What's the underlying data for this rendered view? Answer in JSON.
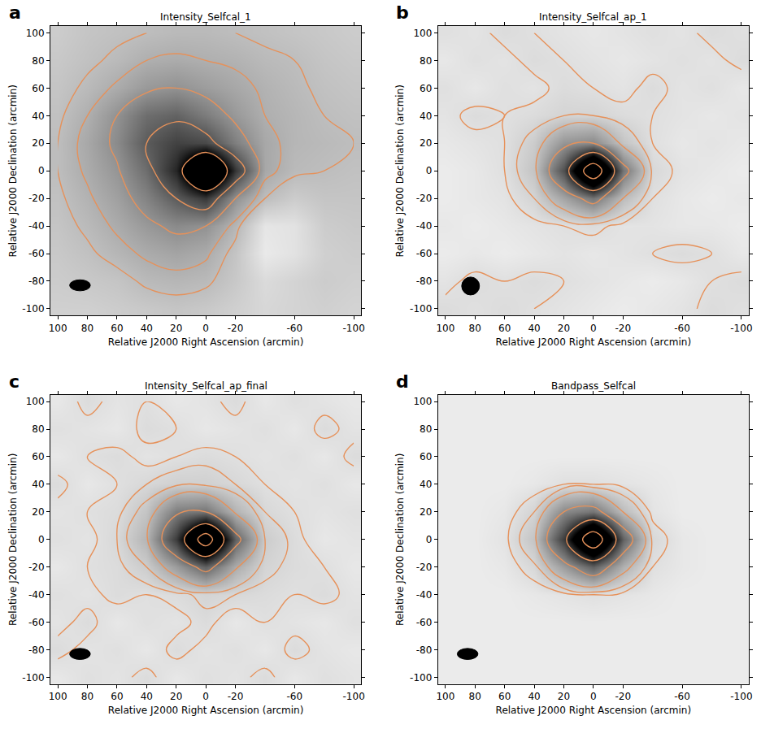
{
  "chart_data": [
    {
      "type": "contour",
      "panel": "a",
      "title": "Intensity_Selfcal_1",
      "x_label": "Relative J2000 Right Ascension (arcmin)",
      "y_label": "Relative J2000 Declination (arcmin)",
      "xlim": [
        105,
        -105
      ],
      "ylim": [
        -105,
        105
      ],
      "xticks": [
        100,
        80,
        60,
        40,
        20,
        0,
        -20,
        -60,
        -100
      ],
      "yticks": [
        -100,
        -80,
        -60,
        -40,
        -20,
        0,
        20,
        40,
        60,
        80,
        100
      ],
      "x": [
        -100,
        -80,
        -60,
        -40,
        -20,
        0,
        20,
        40,
        60,
        80,
        100
      ],
      "y": [
        -100,
        -80,
        -60,
        -40,
        -20,
        0,
        20,
        40,
        60,
        80,
        100
      ],
      "z": [
        [
          2,
          3,
          2,
          1,
          3,
          5,
          6,
          5,
          4,
          3,
          3
        ],
        [
          3,
          4,
          2,
          0,
          5,
          9,
          10,
          9,
          6,
          5,
          4
        ],
        [
          4,
          3,
          -2,
          -4,
          6,
          13,
          15,
          13,
          10,
          7,
          5
        ],
        [
          5,
          4,
          -2,
          -3,
          10,
          20,
          22,
          18,
          13,
          9,
          6
        ],
        [
          6,
          6,
          4,
          8,
          20,
          45,
          35,
          24,
          16,
          11,
          7
        ],
        [
          7,
          8,
          9,
          14,
          45,
          100,
          50,
          30,
          19,
          13,
          8
        ],
        [
          8,
          9,
          10,
          14,
          25,
          40,
          42,
          35,
          22,
          14,
          8
        ],
        [
          7,
          8,
          10,
          12,
          18,
          26,
          33,
          30,
          20,
          12,
          7
        ],
        [
          6,
          7,
          9,
          11,
          14,
          17,
          20,
          18,
          13,
          9,
          6
        ],
        [
          5,
          6,
          8,
          9,
          11,
          12,
          13,
          12,
          9,
          7,
          5
        ],
        [
          4,
          5,
          6,
          7,
          8,
          9,
          9,
          8,
          7,
          6,
          4
        ]
      ],
      "zlim": [
        -10,
        60
      ],
      "contour_levels": [
        8,
        12,
        20,
        35,
        60
      ],
      "color": "#e8141c",
      "beam": {
        "x": [
          78,
          92
        ],
        "y": [
          -87,
          -79
        ]
      }
    },
    {
      "type": "contour",
      "panel": "b",
      "title": "Intensity_Selfcal_ap_1",
      "x_label": "Relative J2000 Right Ascension (arcmin)",
      "y_label": "Relative J2000 Declination (arcmin)",
      "xlim": [
        105,
        -105
      ],
      "ylim": [
        -105,
        105
      ],
      "xticks": [
        100,
        80,
        60,
        40,
        20,
        0,
        -20,
        -60,
        -100
      ],
      "yticks": [
        -100,
        -80,
        -60,
        -40,
        -20,
        0,
        20,
        40,
        60,
        80,
        100
      ],
      "x": [
        -100,
        -80,
        -60,
        -40,
        -20,
        0,
        20,
        40,
        60,
        80,
        100
      ],
      "y": [
        -100,
        -80,
        -60,
        -40,
        -20,
        0,
        20,
        40,
        60,
        80,
        100
      ],
      "z": [
        [
          3,
          4,
          2,
          1,
          0,
          1,
          2,
          3,
          4,
          3,
          4
        ],
        [
          4,
          3,
          1,
          0,
          1,
          2,
          3,
          4,
          3,
          4,
          2
        ],
        [
          1,
          3,
          4,
          3,
          2,
          1,
          2,
          1,
          0,
          1,
          0
        ],
        [
          0,
          1,
          1,
          2,
          2,
          4,
          3,
          2,
          1,
          0,
          1
        ],
        [
          1,
          0,
          1,
          3,
          12,
          30,
          18,
          6,
          2,
          1,
          0
        ],
        [
          0,
          1,
          2,
          5,
          30,
          100,
          40,
          10,
          3,
          1,
          0
        ],
        [
          1,
          2,
          1,
          3,
          10,
          25,
          22,
          8,
          3,
          2,
          1
        ],
        [
          2,
          1,
          2,
          3,
          4,
          6,
          6,
          4,
          3,
          4,
          2
        ],
        [
          1,
          3,
          2,
          4,
          2,
          3,
          4,
          2,
          3,
          1,
          3
        ],
        [
          4,
          2,
          3,
          2,
          1,
          2,
          3,
          4,
          2,
          3,
          1
        ],
        [
          3,
          4,
          2,
          3,
          2,
          1,
          2,
          3,
          4,
          2,
          3
        ]
      ],
      "zlim": [
        -5,
        60
      ],
      "contour_levels": [
        3,
        6,
        12,
        25,
        50,
        80
      ],
      "color": "#e8141c",
      "beam": {
        "x": [
          77,
          89
        ],
        "y": [
          -90,
          -77
        ]
      }
    },
    {
      "type": "contour",
      "panel": "c",
      "title": "Intensity_Selfcal_ap_final",
      "x_label": "Relative J2000 Right Ascension (arcmin)",
      "y_label": "Relative J2000 Declination (arcmin)",
      "xlim": [
        105,
        -105
      ],
      "ylim": [
        -105,
        105
      ],
      "xticks": [
        100,
        80,
        60,
        40,
        20,
        0,
        -20,
        -60,
        -100
      ],
      "yticks": [
        -100,
        -80,
        -60,
        -40,
        -20,
        0,
        20,
        40,
        60,
        80,
        100
      ],
      "x": [
        -100,
        -80,
        -60,
        -40,
        -20,
        0,
        20,
        40,
        60,
        80,
        100
      ],
      "y": [
        -100,
        -80,
        -60,
        -40,
        -20,
        0,
        20,
        40,
        60,
        80,
        100
      ],
      "z": [
        [
          2,
          3,
          1,
          4,
          2,
          3,
          1,
          4,
          2,
          3,
          1
        ],
        [
          1,
          2,
          4,
          1,
          3,
          2,
          4,
          1,
          3,
          2,
          4
        ],
        [
          3,
          1,
          2,
          3,
          1,
          4,
          2,
          3,
          1,
          4,
          2
        ],
        [
          2,
          4,
          3,
          4,
          5,
          6,
          4,
          3,
          4,
          2,
          3
        ],
        [
          1,
          3,
          4,
          6,
          16,
          35,
          20,
          8,
          4,
          3,
          1
        ],
        [
          2,
          1,
          4,
          8,
          35,
          100,
          45,
          14,
          5,
          2,
          3
        ],
        [
          3,
          2,
          3,
          5,
          14,
          30,
          28,
          10,
          4,
          3,
          2
        ],
        [
          1,
          3,
          2,
          3,
          5,
          7,
          7,
          5,
          3,
          1,
          4
        ],
        [
          4,
          1,
          3,
          2,
          3,
          4,
          3,
          2,
          4,
          3,
          1
        ],
        [
          2,
          4,
          1,
          3,
          2,
          1,
          3,
          4,
          1,
          2,
          3
        ],
        [
          1,
          2,
          3,
          1,
          4,
          2,
          1,
          3,
          2,
          4,
          1
        ]
      ],
      "zlim": [
        -5,
        60
      ],
      "contour_levels": [
        3,
        5,
        8,
        15,
        30,
        60,
        85
      ],
      "color": "#e8141c",
      "beam": {
        "x": [
          78,
          92
        ],
        "y": [
          -87,
          -79
        ]
      }
    },
    {
      "type": "contour",
      "panel": "d",
      "title": "Bandpass_Selfcal",
      "x_label": "Relative J2000 Right Ascension (arcmin)",
      "y_label": "Relative J2000 Declination (arcmin)",
      "xlim": [
        105,
        -105
      ],
      "ylim": [
        -105,
        105
      ],
      "xticks": [
        100,
        80,
        60,
        40,
        20,
        0,
        -20,
        -60,
        -100
      ],
      "yticks": [
        -100,
        -80,
        -60,
        -40,
        -20,
        0,
        20,
        40,
        60,
        80,
        100
      ],
      "x": [
        -100,
        -80,
        -60,
        -40,
        -20,
        0,
        20,
        40,
        60,
        80,
        100
      ],
      "y": [
        -100,
        -80,
        -60,
        -40,
        -20,
        0,
        20,
        40,
        60,
        80,
        100
      ],
      "z": [
        [
          0,
          0,
          0,
          0,
          0,
          0,
          0,
          0,
          0,
          0,
          0
        ],
        [
          0,
          0,
          0,
          0,
          0,
          0,
          0,
          0,
          0,
          0,
          0
        ],
        [
          0,
          0,
          0,
          0,
          0,
          0,
          0,
          0,
          0,
          0,
          0
        ],
        [
          0,
          0,
          0,
          1,
          2,
          3,
          2,
          1,
          0,
          0,
          0
        ],
        [
          0,
          0,
          1,
          3,
          15,
          35,
          20,
          5,
          1,
          0,
          0
        ],
        [
          0,
          0,
          1,
          5,
          35,
          100,
          45,
          10,
          2,
          0,
          0
        ],
        [
          0,
          0,
          0,
          2,
          12,
          30,
          25,
          6,
          1,
          0,
          0
        ],
        [
          0,
          0,
          0,
          1,
          2,
          3,
          3,
          1,
          0,
          0,
          0
        ],
        [
          0,
          0,
          0,
          0,
          0,
          0,
          0,
          0,
          0,
          0,
          0
        ],
        [
          0,
          0,
          0,
          0,
          0,
          0,
          0,
          0,
          0,
          0,
          0
        ],
        [
          0,
          0,
          0,
          0,
          0,
          0,
          0,
          0,
          0,
          0,
          0
        ]
      ],
      "zlim": [
        -5,
        60
      ],
      "contour_levels": [
        3,
        6,
        12,
        25,
        50,
        80
      ],
      "color": "#e8141c",
      "beam": {
        "x": [
          78,
          92
        ],
        "y": [
          -87,
          -79
        ]
      }
    }
  ]
}
